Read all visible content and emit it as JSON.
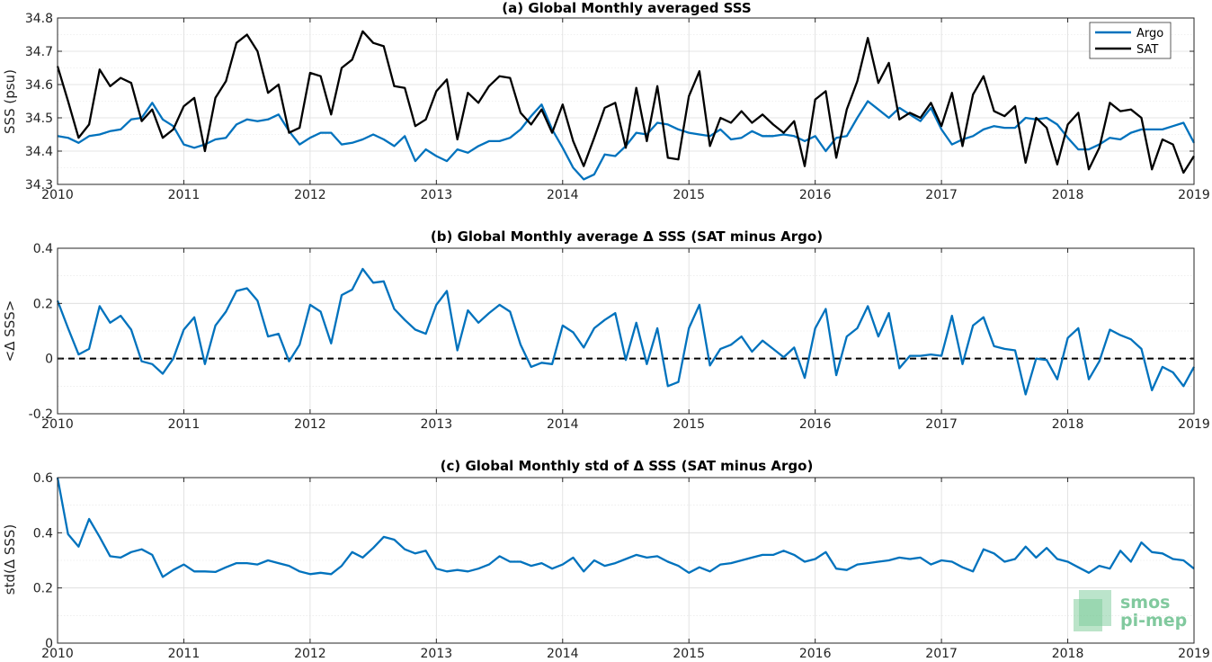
{
  "chart_data": [
    {
      "type": "line",
      "title": "(a) Global Monthly averaged SSS",
      "xlabel": "",
      "ylabel": "SSS (psu)",
      "xlim": [
        2010,
        2019
      ],
      "ylim": [
        34.3,
        34.8
      ],
      "xticks": [
        "2010",
        "2011",
        "2012",
        "2013",
        "2014",
        "2015",
        "2016",
        "2017",
        "2018",
        "2019"
      ],
      "yticks": [
        "34.3",
        "34.4",
        "34.5",
        "34.6",
        "34.7",
        "34.8"
      ],
      "grid": true,
      "legend": "top-right",
      "series": [
        {
          "name": "Argo",
          "color": "#0072bd",
          "values": [
            34.445,
            34.44,
            34.425,
            34.445,
            34.45,
            34.46,
            34.465,
            34.495,
            34.5,
            34.545,
            34.495,
            34.475,
            34.42,
            34.41,
            34.42,
            34.435,
            34.44,
            34.48,
            34.495,
            34.49,
            34.495,
            34.51,
            34.46,
            34.42,
            34.44,
            34.455,
            34.455,
            34.42,
            34.425,
            34.435,
            34.45,
            34.435,
            34.415,
            34.445,
            34.37,
            34.405,
            34.385,
            34.37,
            34.405,
            34.395,
            34.415,
            34.43,
            34.43,
            34.44,
            34.465,
            34.505,
            34.54,
            34.465,
            34.41,
            34.35,
            34.315,
            34.33,
            34.39,
            34.385,
            34.415,
            34.455,
            34.45,
            34.485,
            34.48,
            34.465,
            34.455,
            34.45,
            34.445,
            34.465,
            34.435,
            34.44,
            34.46,
            34.445,
            34.445,
            34.45,
            34.445,
            34.43,
            34.445,
            34.4,
            34.44,
            34.445,
            34.5,
            34.55,
            34.525,
            34.5,
            34.53,
            34.51,
            34.49,
            34.53,
            34.465,
            34.42,
            34.435,
            34.445,
            34.465,
            34.475,
            34.47,
            34.47,
            34.5,
            34.495,
            34.5,
            34.48,
            34.44,
            34.405,
            34.405,
            34.42,
            34.44,
            34.435,
            34.455,
            34.465,
            34.465,
            34.465,
            34.475,
            34.485,
            34.425
          ]
        },
        {
          "name": "SAT",
          "color": "#000000",
          "values": [
            34.655,
            34.55,
            34.44,
            34.48,
            34.645,
            34.595,
            34.62,
            34.605,
            34.49,
            34.525,
            34.44,
            34.465,
            34.535,
            34.56,
            34.4,
            34.56,
            34.61,
            34.725,
            34.75,
            34.7,
            34.575,
            34.6,
            34.455,
            34.47,
            34.635,
            34.625,
            34.51,
            34.65,
            34.675,
            34.76,
            34.725,
            34.715,
            34.595,
            34.59,
            34.475,
            34.495,
            34.58,
            34.615,
            34.435,
            34.575,
            34.545,
            34.595,
            34.625,
            34.62,
            34.515,
            34.48,
            34.525,
            34.455,
            34.54,
            34.43,
            34.355,
            34.44,
            34.53,
            34.545,
            34.41,
            34.59,
            34.43,
            34.595,
            34.38,
            34.375,
            34.565,
            34.64,
            34.415,
            34.5,
            34.485,
            34.52,
            34.485,
            34.51,
            34.48,
            34.455,
            34.49,
            34.355,
            34.555,
            34.58,
            34.38,
            34.525,
            34.61,
            34.74,
            34.605,
            34.665,
            34.495,
            34.515,
            34.5,
            34.545,
            34.475,
            34.575,
            34.415,
            34.57,
            34.625,
            34.52,
            34.505,
            34.535,
            34.365,
            34.5,
            34.47,
            34.36,
            34.48,
            34.515,
            34.345,
            34.41,
            34.545,
            34.52,
            34.525,
            34.5,
            34.345,
            34.435,
            34.42,
            34.335,
            34.385
          ]
        }
      ]
    },
    {
      "type": "line",
      "title": "(b) Global Monthly average Δ SSS (SAT minus Argo)",
      "xlabel": "",
      "ylabel": "<Δ SSS>",
      "xlim": [
        2010,
        2019
      ],
      "ylim": [
        -0.2,
        0.4
      ],
      "xticks": [
        "2010",
        "2011",
        "2012",
        "2013",
        "2014",
        "2015",
        "2016",
        "2017",
        "2018",
        "2019"
      ],
      "yticks": [
        "-0.2",
        "0",
        "0.2",
        "0.4"
      ],
      "grid": true,
      "reference_line": 0,
      "series": [
        {
          "name": "",
          "color": "#0072bd",
          "values": [
            0.21,
            0.11,
            0.015,
            0.035,
            0.19,
            0.13,
            0.155,
            0.105,
            -0.01,
            -0.02,
            -0.055,
            0.0,
            0.105,
            0.15,
            -0.02,
            0.12,
            0.17,
            0.245,
            0.255,
            0.21,
            0.08,
            0.09,
            -0.01,
            0.05,
            0.195,
            0.17,
            0.055,
            0.23,
            0.25,
            0.325,
            0.275,
            0.28,
            0.18,
            0.14,
            0.105,
            0.09,
            0.195,
            0.245,
            0.03,
            0.175,
            0.13,
            0.165,
            0.195,
            0.17,
            0.05,
            -0.03,
            -0.015,
            -0.02,
            0.12,
            0.095,
            0.04,
            0.11,
            0.14,
            0.165,
            -0.005,
            0.13,
            -0.02,
            0.11,
            -0.1,
            -0.085,
            0.11,
            0.195,
            -0.025,
            0.035,
            0.05,
            0.08,
            0.025,
            0.065,
            0.035,
            0.005,
            0.04,
            -0.07,
            0.11,
            0.18,
            -0.06,
            0.08,
            0.11,
            0.19,
            0.08,
            0.165,
            -0.035,
            0.01,
            0.01,
            0.015,
            0.01,
            0.155,
            -0.02,
            0.12,
            0.15,
            0.045,
            0.035,
            0.03,
            -0.13,
            0.0,
            -0.005,
            -0.075,
            0.075,
            0.11,
            -0.075,
            -0.01,
            0.105,
            0.085,
            0.07,
            0.035,
            -0.115,
            -0.03,
            -0.05,
            -0.1,
            -0.03
          ]
        }
      ]
    },
    {
      "type": "line",
      "title": "(c) Global Monthly std of Δ SSS (SAT minus Argo)",
      "xlabel": "",
      "ylabel": "std(Δ SSS)",
      "xlim": [
        2010,
        2019
      ],
      "ylim": [
        0,
        0.6
      ],
      "xticks": [
        "2010",
        "2011",
        "2012",
        "2013",
        "2014",
        "2015",
        "2016",
        "2017",
        "2018",
        "2019"
      ],
      "yticks": [
        "0",
        "0.2",
        "0.4",
        "0.6"
      ],
      "grid": true,
      "series": [
        {
          "name": "",
          "color": "#0072bd",
          "values": [
            0.6,
            0.395,
            0.35,
            0.45,
            0.385,
            0.315,
            0.31,
            0.33,
            0.34,
            0.32,
            0.24,
            0.265,
            0.285,
            0.26,
            0.26,
            0.258,
            0.275,
            0.29,
            0.29,
            0.285,
            0.3,
            0.29,
            0.28,
            0.26,
            0.25,
            0.255,
            0.25,
            0.28,
            0.33,
            0.31,
            0.345,
            0.385,
            0.375,
            0.34,
            0.325,
            0.335,
            0.27,
            0.26,
            0.265,
            0.26,
            0.27,
            0.285,
            0.315,
            0.295,
            0.295,
            0.28,
            0.29,
            0.27,
            0.285,
            0.31,
            0.26,
            0.3,
            0.28,
            0.29,
            0.305,
            0.32,
            0.31,
            0.315,
            0.295,
            0.28,
            0.255,
            0.275,
            0.26,
            0.285,
            0.29,
            0.3,
            0.31,
            0.32,
            0.32,
            0.335,
            0.32,
            0.295,
            0.305,
            0.33,
            0.27,
            0.265,
            0.285,
            0.29,
            0.295,
            0.3,
            0.31,
            0.305,
            0.31,
            0.285,
            0.3,
            0.295,
            0.275,
            0.26,
            0.34,
            0.325,
            0.295,
            0.305,
            0.35,
            0.31,
            0.345,
            0.305,
            0.295,
            0.275,
            0.255,
            0.28,
            0.27,
            0.335,
            0.295,
            0.365,
            0.33,
            0.325,
            0.305,
            0.3,
            0.27
          ]
        }
      ]
    }
  ],
  "watermark": {
    "line1": "smos",
    "line2": "pi-mep"
  }
}
